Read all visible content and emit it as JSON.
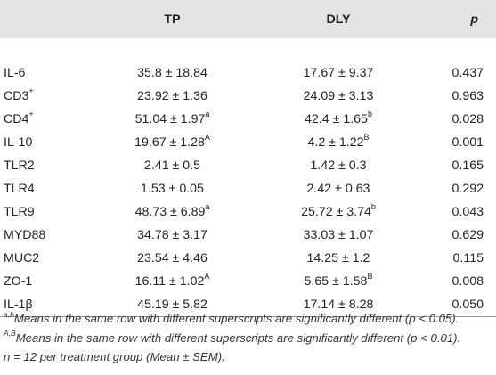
{
  "table": {
    "headers": [
      "",
      "TP",
      "DLY",
      "p"
    ],
    "rows": [
      {
        "label": "IL-6",
        "label_sup": "",
        "tp": "35.8 ± 18.84",
        "tp_sup": "",
        "dly": "17.67 ± 9.37",
        "dly_sup": "",
        "p": "0.437"
      },
      {
        "label": "CD3",
        "label_sup": "+",
        "tp": "23.92 ± 1.36",
        "tp_sup": "",
        "dly": "24.09 ± 3.13",
        "dly_sup": "",
        "p": "0.963"
      },
      {
        "label": "CD4",
        "label_sup": "+",
        "tp": "51.04 ± 1.97",
        "tp_sup": "a",
        "dly": "42.4 ± 1.65",
        "dly_sup": "b",
        "p": "0.028"
      },
      {
        "label": "IL-10",
        "label_sup": "",
        "tp": "19.67 ± 1.28",
        "tp_sup": "A",
        "dly": "4.2 ± 1.22",
        "dly_sup": "B",
        "p": "0.001"
      },
      {
        "label": "TLR2",
        "label_sup": "",
        "tp": "2.41 ± 0.5",
        "tp_sup": "",
        "dly": "1.42 ± 0.3",
        "dly_sup": "",
        "p": "0.165"
      },
      {
        "label": "TLR4",
        "label_sup": "",
        "tp": "1.53 ± 0.05",
        "tp_sup": "",
        "dly": "2.42 ± 0.63",
        "dly_sup": "",
        "p": "0.292"
      },
      {
        "label": "TLR9",
        "label_sup": "",
        "tp": "48.73 ± 6.89",
        "tp_sup": "a",
        "dly": "25.72 ± 3.74",
        "dly_sup": "b",
        "p": "0.043"
      },
      {
        "label": "MYD88",
        "label_sup": "",
        "tp": "34.78 ± 3.17",
        "tp_sup": "",
        "dly": "33.03 ± 1.07",
        "dly_sup": "",
        "p": "0.629"
      },
      {
        "label": "MUC2",
        "label_sup": "",
        "tp": "23.54 ± 4.46",
        "tp_sup": "",
        "dly": "14.25 ± 1.2",
        "dly_sup": "",
        "p": "0.115"
      },
      {
        "label": "ZO-1",
        "label_sup": "",
        "tp": "16.11 ± 1.02",
        "tp_sup": "A",
        "dly": "5.65 ± 1.58",
        "dly_sup": "B",
        "p": "0.008"
      },
      {
        "label": "IL-1β",
        "label_sup": "",
        "tp": "45.19 ± 5.82",
        "tp_sup": "",
        "dly": "17.14 ± 8.28",
        "dly_sup": "",
        "p": "0.050"
      }
    ]
  },
  "footnotes": [
    {
      "sup": "a,b",
      "text": "Means in the same row with different superscripts are significantly different (p < 0.05)."
    },
    {
      "sup": "A,B",
      "text": "Means in the same row with different superscripts are significantly different (p < 0.01)."
    },
    {
      "sup": "",
      "text": "n = 12 per treatment group (Mean ± SEM)."
    }
  ],
  "colors": {
    "header_background": "#e4e4e4",
    "text": "#222222",
    "rule": "#999999"
  }
}
